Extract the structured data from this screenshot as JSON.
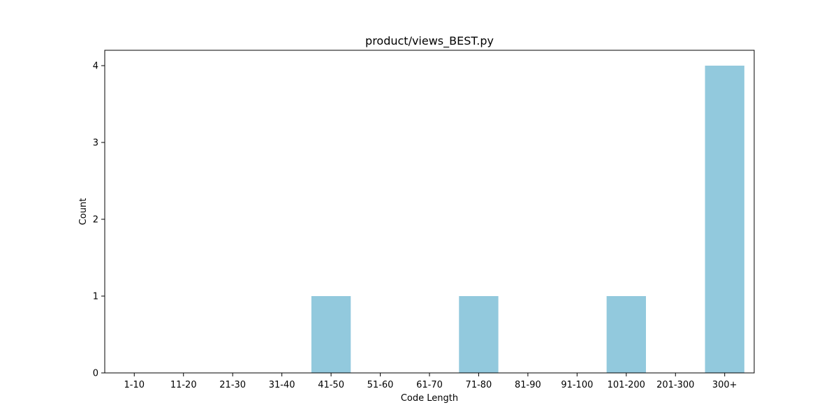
{
  "chart_data": {
    "type": "bar",
    "title": "product/views_BEST.py",
    "xlabel": "Code Length",
    "ylabel": "Count",
    "categories": [
      "1-10",
      "11-20",
      "21-30",
      "31-40",
      "41-50",
      "51-60",
      "61-70",
      "71-80",
      "81-90",
      "91-100",
      "101-200",
      "201-300",
      "300+"
    ],
    "values": [
      0,
      0,
      0,
      0,
      1,
      0,
      0,
      1,
      0,
      0,
      1,
      0,
      4
    ],
    "ylim": [
      0,
      4.2
    ],
    "yticks": [
      0,
      1,
      2,
      3,
      4
    ],
    "bar_color": "#92c9dd",
    "grid": false,
    "legend": "none"
  }
}
